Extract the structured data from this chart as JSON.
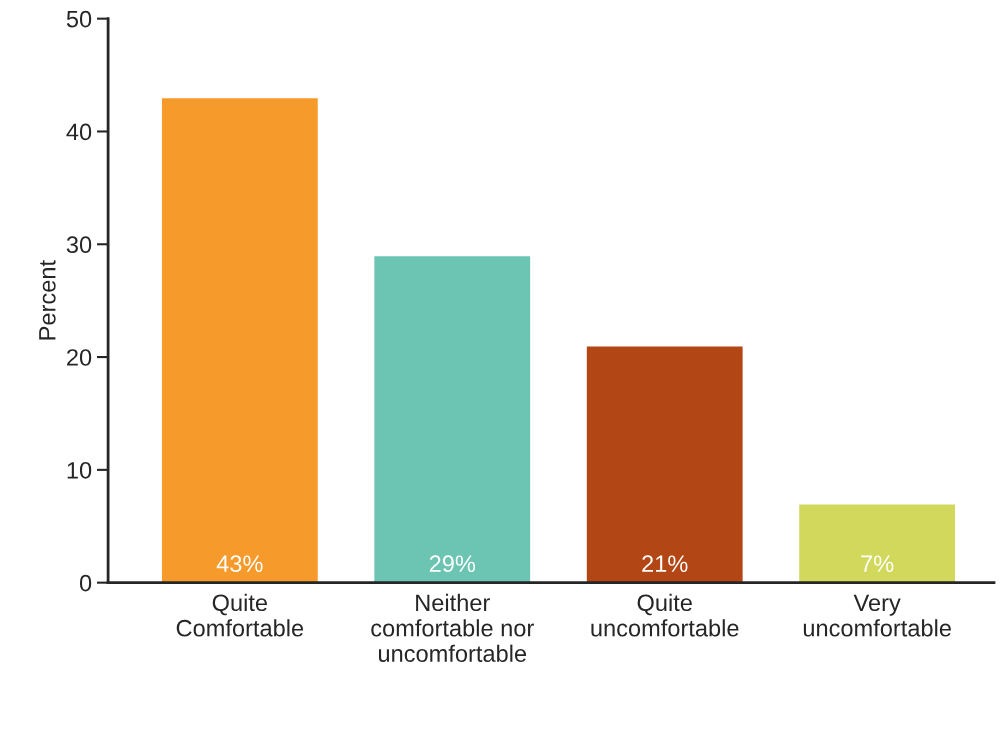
{
  "chart_data": {
    "type": "bar",
    "ylabel": "Percent",
    "categories": [
      "Quite Comfortable",
      "Neither comfortable nor uncomfortable",
      "Quite uncomfortable",
      "Very uncomfortable"
    ],
    "values": [
      43,
      29,
      21,
      7
    ],
    "colors": [
      "#f59a2b",
      "#6cc4b3",
      "#b34615",
      "#d1d85c"
    ],
    "value_labels": [
      "43%",
      "29%",
      "21%",
      "7%"
    ],
    "ylim": [
      0,
      50
    ],
    "yticks": [
      0,
      10,
      20,
      30,
      40,
      50
    ],
    "grid": false,
    "legend": false
  }
}
